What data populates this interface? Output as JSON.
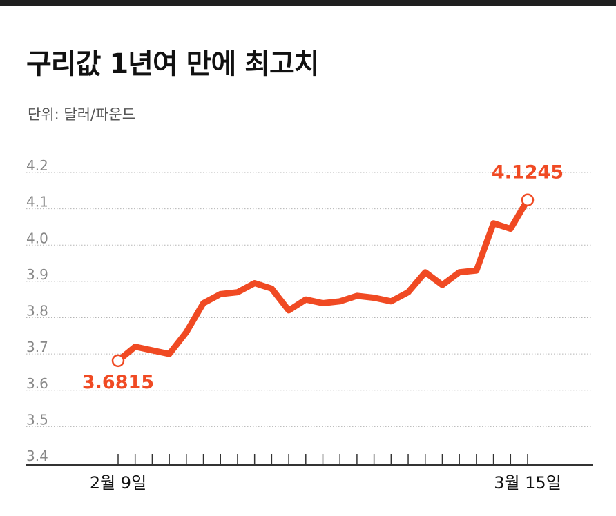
{
  "header": {
    "title": "구리값 1년여 만에 최고치",
    "unit_label": "단위: 달러/파운드"
  },
  "colors": {
    "line": "#f04a23",
    "grid": "#b5b5b5",
    "axis": "#333333",
    "tick_label": "#888888",
    "topbar": "#1f1f1f"
  },
  "chart_data": {
    "type": "line",
    "title": "구리값 1년여 만에 최고치",
    "ylabel": "단위: 달러/파운드",
    "ylim": [
      3.4,
      4.2
    ],
    "yticks": [
      "3.4",
      "3.5",
      "3.6",
      "3.7",
      "3.8",
      "3.9",
      "4.0",
      "4.1",
      "4.2"
    ],
    "grid": true,
    "x_labels": [
      {
        "index": 0,
        "label": "2월 9일"
      },
      {
        "index": 24,
        "label": "3월 15일"
      }
    ],
    "series": [
      {
        "values": [
          3.6815,
          3.72,
          3.71,
          3.7,
          3.76,
          3.84,
          3.865,
          3.87,
          3.895,
          3.88,
          3.82,
          3.85,
          3.84,
          3.845,
          3.86,
          3.855,
          3.845,
          3.87,
          3.925,
          3.89,
          3.925,
          3.93,
          4.06,
          4.045,
          4.1245
        ]
      }
    ],
    "annotations": [
      {
        "index": 0,
        "text": "3.6815",
        "position": "below"
      },
      {
        "index": 24,
        "text": "4.1245",
        "position": "above"
      }
    ]
  }
}
